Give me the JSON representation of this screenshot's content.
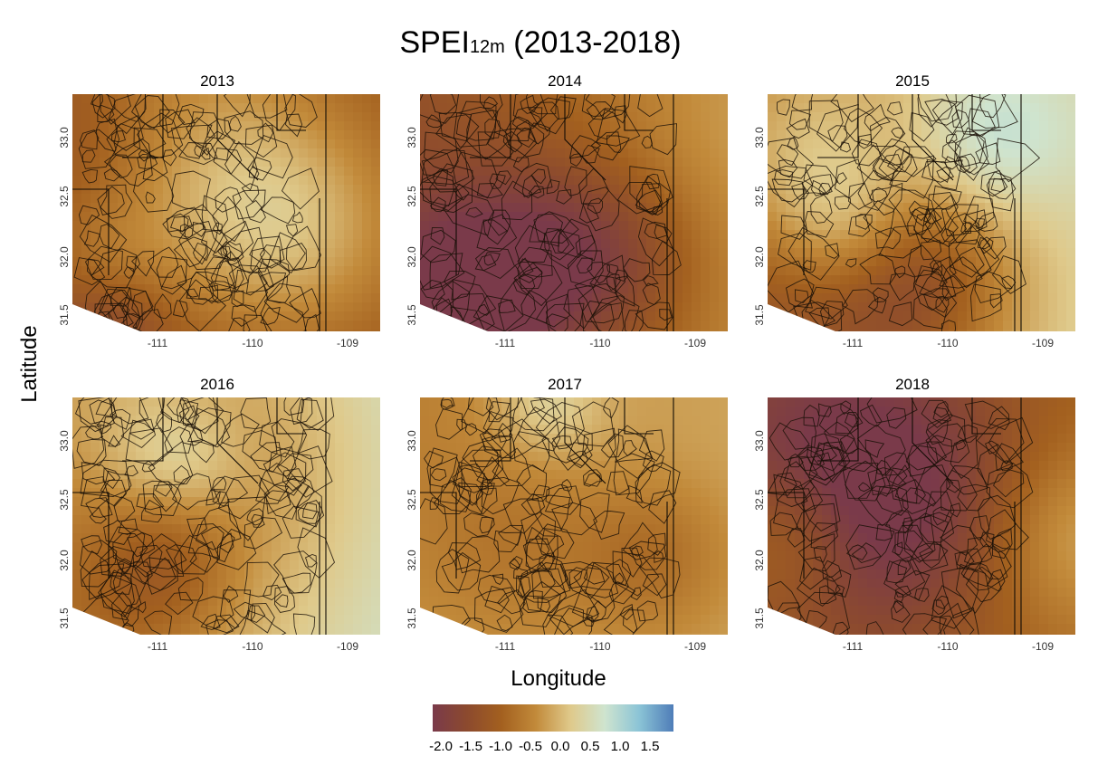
{
  "figure": {
    "title_main": "SPEI",
    "title_sub": "12m",
    "title_rest": " (2013-2018)",
    "xlabel": "Longitude",
    "ylabel": "Latitude"
  },
  "axes": {
    "x_ticks": [
      "-111",
      "-110",
      "-109"
    ],
    "y_ticks": [
      "31.5",
      "32.0",
      "32.5",
      "33.0"
    ]
  },
  "panels": [
    {
      "year": "2013",
      "mean_tone": -1.5
    },
    {
      "year": "2014",
      "mean_tone": -1.0
    },
    {
      "year": "2015",
      "mean_tone": -0.2
    },
    {
      "year": "2016",
      "mean_tone": 0.1
    },
    {
      "year": "2017",
      "mean_tone": -0.5
    },
    {
      "year": "2018",
      "mean_tone": -1.2
    }
  ],
  "legend": {
    "ticks": [
      "-2.0",
      "-1.5",
      "-1.0",
      "-0.5",
      "0.0",
      "0.5",
      "1.0",
      "1.5"
    ],
    "colors": [
      "#7a3a4a",
      "#8c4a2e",
      "#a3601f",
      "#c28a3a",
      "#dfc98a",
      "#cfe4cf",
      "#8bc4d6",
      "#4f7db8"
    ]
  }
}
